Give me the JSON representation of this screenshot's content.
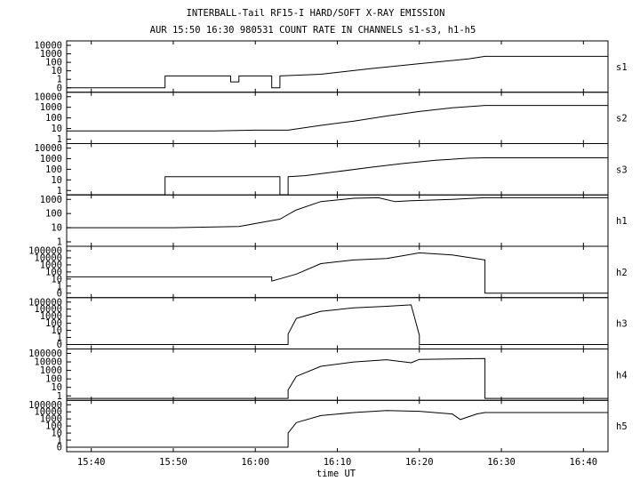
{
  "chart_data": {
    "type": "line",
    "title": "INTERBALL-Tail RF15-I HARD/SOFT X-RAY EMISSION",
    "subtitle": "AUR 15:50 16:30 980531  COUNT RATE IN CHANNELS s1-s3, h1-h5",
    "xlabel": "time UT",
    "x_ticks": [
      "15:40",
      "15:50",
      "16:00",
      "16:10",
      "16:20",
      "16:30",
      "16:40"
    ],
    "xlim": [
      "15:37",
      "16:43"
    ],
    "y_scale": "log",
    "grid": false,
    "panels": [
      {
        "channel": "s1",
        "y_ticks": [
          "10000",
          "1000",
          "100",
          "10",
          "1",
          "0"
        ],
        "series": [
          {
            "x": [
              "15:37",
              "15:49",
              "15:49",
              "15:57",
              "15:57",
              "15:58",
              "15:58",
              "16:02",
              "16:02",
              "16:03",
              "16:03",
              "16:08",
              "16:14",
              "16:20",
              "16:26",
              "16:28",
              "16:43"
            ],
            "y": [
              0,
              0,
              2.5,
              2.5,
              0.5,
              0.5,
              2.5,
              2.5,
              0,
              0,
              2.5,
              4,
              18,
              70,
              250,
              500,
              500
            ]
          }
        ]
      },
      {
        "channel": "s2",
        "y_ticks": [
          "10000",
          "1000",
          "100",
          "10",
          "1"
        ],
        "series": [
          {
            "x": [
              "15:37",
              "15:45",
              "15:55",
              "16:00",
              "16:04",
              "16:08",
              "16:12",
              "16:16",
              "16:20",
              "16:24",
              "16:28",
              "16:43"
            ],
            "y": [
              6,
              6,
              6,
              7,
              7,
              20,
              50,
              150,
              400,
              900,
              1500,
              1500
            ]
          }
        ]
      },
      {
        "channel": "s3",
        "y_ticks": [
          "10000",
          "1000",
          "100",
          "10",
          "1"
        ],
        "series": [
          {
            "x": [
              "15:37",
              "15:49",
              "15:49",
              "16:03",
              "16:03",
              "16:04",
              "16:04",
              "16:06",
              "16:10",
              "16:14",
              "16:18",
              "16:22",
              "16:26",
              "16:28",
              "16:43"
            ],
            "y": [
              0.4,
              0.4,
              20,
              20,
              0.4,
              0.4,
              20,
              25,
              60,
              150,
              350,
              700,
              1100,
              1200,
              1200
            ]
          }
        ]
      },
      {
        "channel": "h1",
        "y_ticks": [
          "1000",
          "100",
          "10",
          "1"
        ],
        "series": [
          {
            "x": [
              "15:37",
              "15:50",
              "15:58",
              "16:01",
              "16:03",
              "16:05",
              "16:08",
              "16:12",
              "16:15",
              "16:17",
              "16:19",
              "16:24",
              "16:28",
              "16:43"
            ],
            "y": [
              10,
              10,
              12,
              25,
              40,
              180,
              700,
              1200,
              1300,
              700,
              800,
              1000,
              1300,
              1300
            ]
          }
        ]
      },
      {
        "channel": "h2",
        "y_ticks": [
          "100000",
          "10000",
          "1000",
          "100",
          "10",
          "1",
          "0"
        ],
        "series": [
          {
            "x": [
              "15:37",
              "16:02",
              "16:02",
              "16:05",
              "16:08",
              "16:12",
              "16:16",
              "16:18",
              "16:20",
              "16:24",
              "16:28",
              "16:28",
              "16:43"
            ],
            "y": [
              20,
              20,
              5,
              50,
              1500,
              5000,
              8000,
              20000,
              50000,
              25000,
              5000,
              0,
              0
            ]
          }
        ]
      },
      {
        "channel": "h3",
        "y_ticks": [
          "100000",
          "10000",
          "1000",
          "100",
          "10",
          "1",
          "0"
        ],
        "series": [
          {
            "x": [
              "15:37",
              "16:04",
              "16:04",
              "16:05",
              "16:08",
              "16:12",
              "16:16",
              "16:19",
              "16:20",
              "16:20",
              "16:43"
            ],
            "y": [
              0,
              0,
              3,
              500,
              5000,
              15000,
              25000,
              40000,
              2,
              0,
              0
            ]
          }
        ]
      },
      {
        "channel": "h4",
        "y_ticks": [
          "100000",
          "10000",
          "1000",
          "100",
          "10",
          "1"
        ],
        "series": [
          {
            "x": [
              "15:37",
              "16:04",
              "16:04",
              "16:05",
              "16:08",
              "16:12",
              "16:16",
              "16:19",
              "16:20",
              "16:28",
              "16:28",
              "16:43"
            ],
            "y": [
              0.5,
              0.5,
              5,
              200,
              3000,
              10000,
              18000,
              8000,
              20000,
              25000,
              0.5,
              0.5
            ]
          }
        ]
      },
      {
        "channel": "h5",
        "y_ticks": [
          "100000",
          "10000",
          "1000",
          "100",
          "10",
          "1",
          "0"
        ],
        "series": [
          {
            "x": [
              "15:37",
              "16:04",
              "16:04",
              "16:05",
              "16:08",
              "16:12",
              "16:16",
              "16:20",
              "16:24",
              "16:25",
              "16:27",
              "16:28",
              "16:43"
            ],
            "y": [
              0,
              0,
              10,
              300,
              3000,
              8000,
              15000,
              12000,
              5000,
              800,
              5000,
              8000,
              8000
            ]
          }
        ]
      }
    ]
  }
}
